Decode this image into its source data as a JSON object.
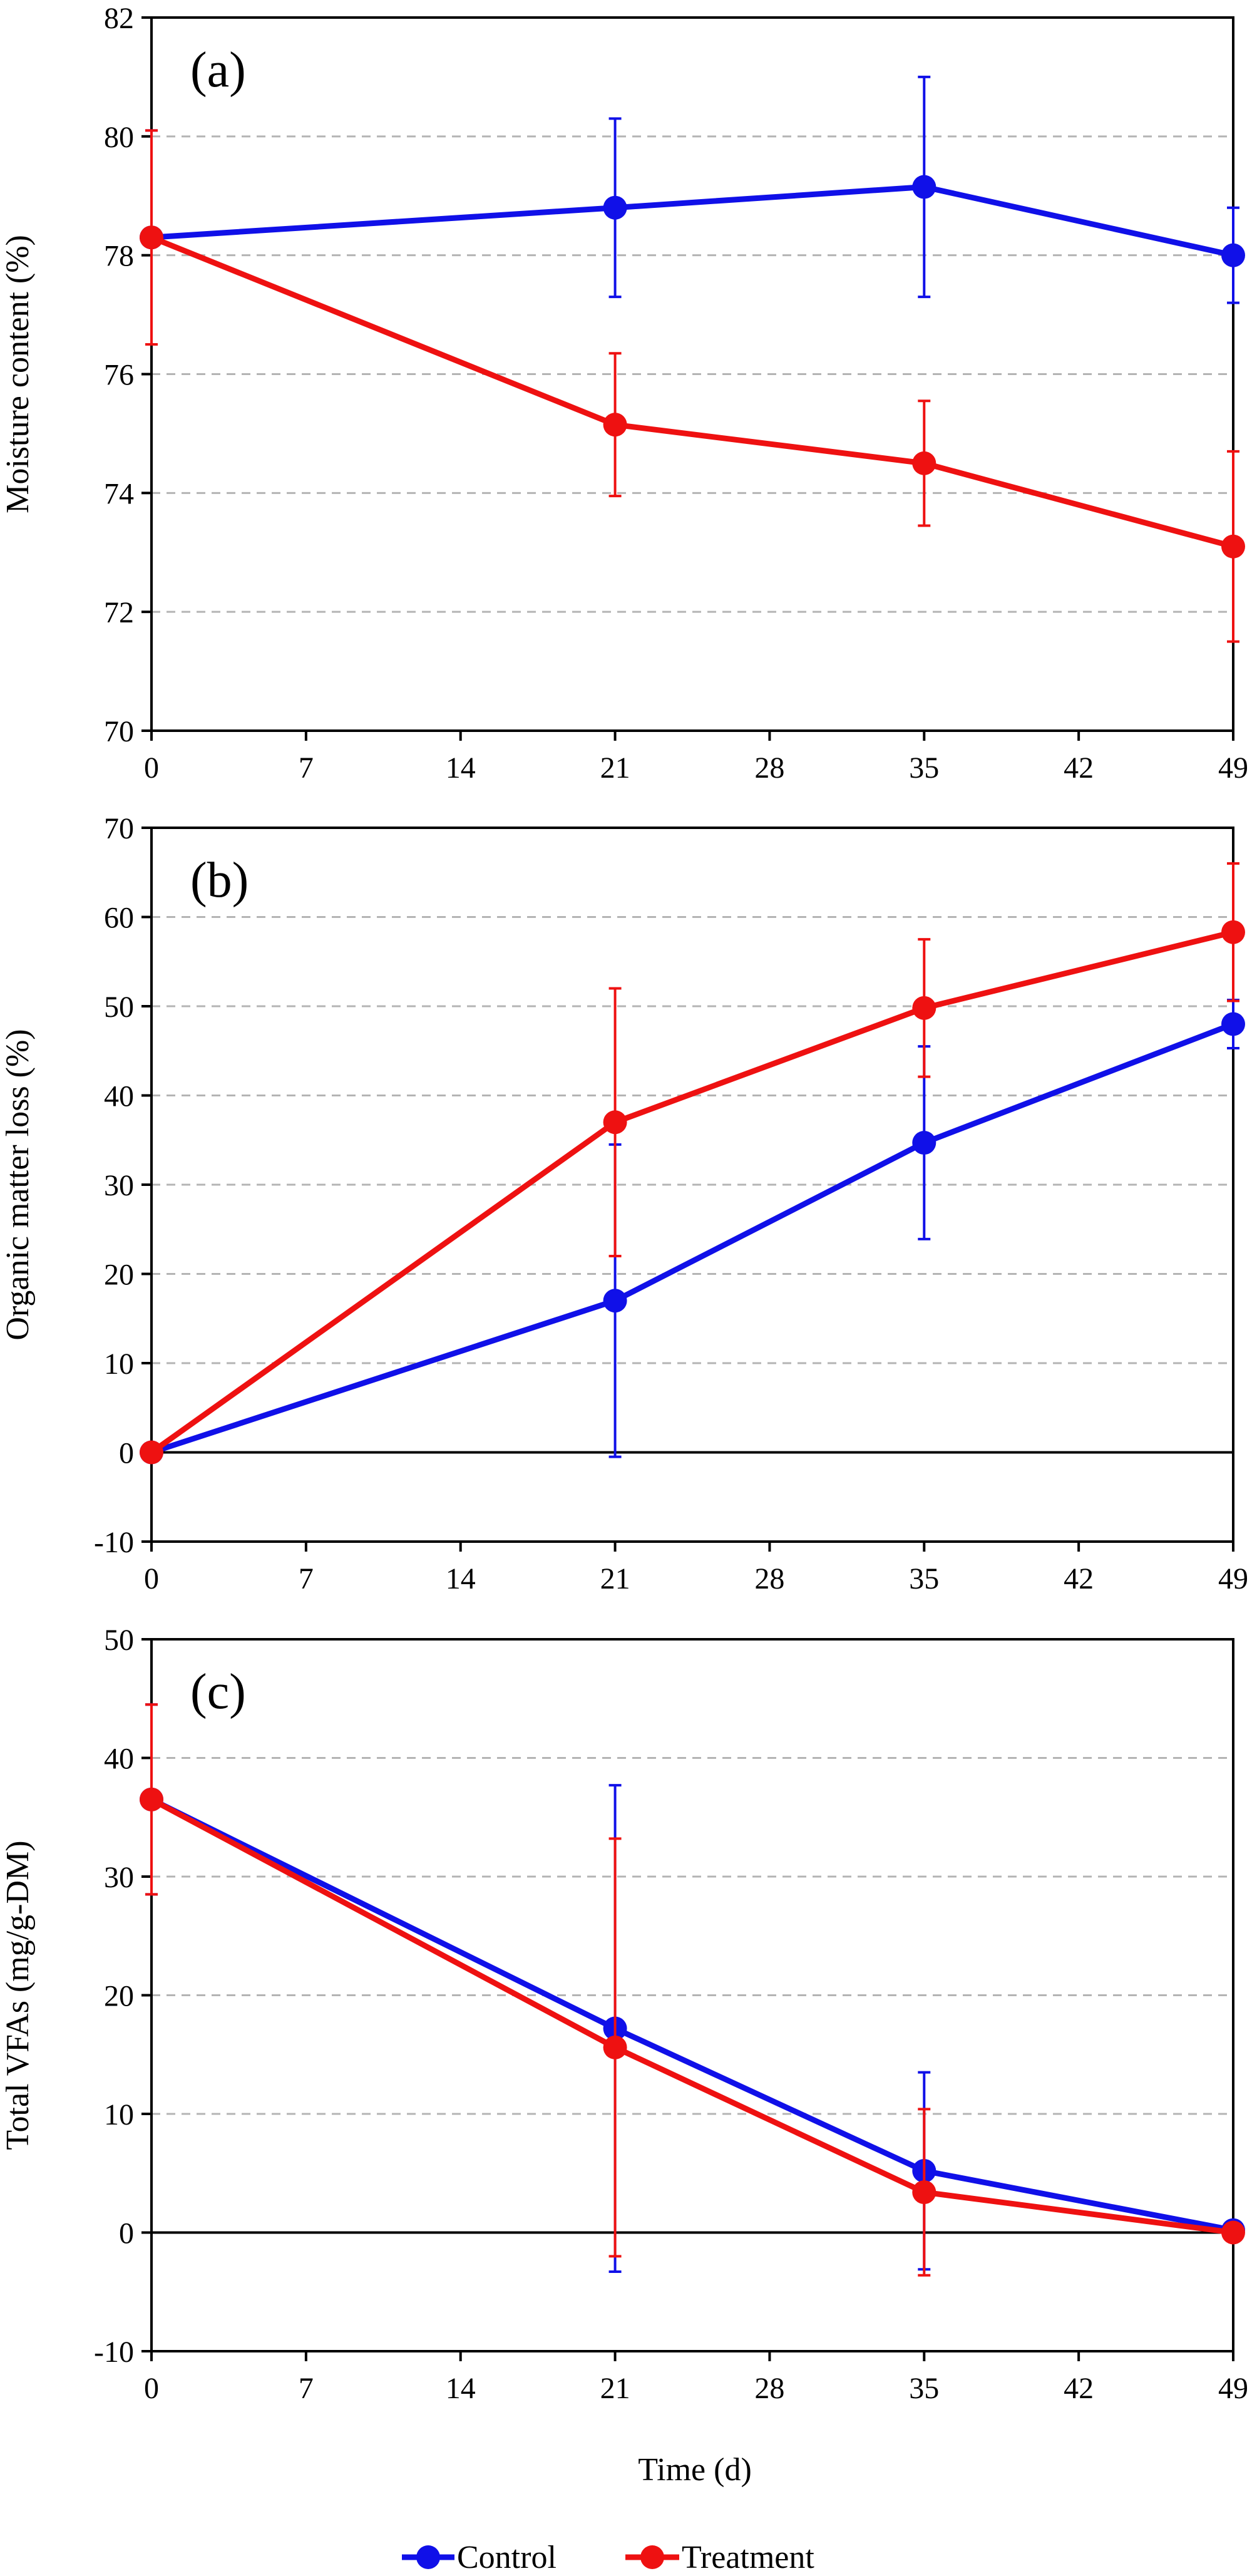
{
  "colors": {
    "control": "#1010e8",
    "treatment": "#ee1111",
    "axis": "#000000",
    "grid": "#b4b4b4"
  },
  "legend": {
    "position": "bottom-center",
    "entries": [
      "Control",
      "Treatment"
    ]
  },
  "chart_data": [
    {
      "type": "line",
      "panel_label": "(a)",
      "xlabel": "",
      "ylabel": "Moisture content  (%)",
      "xlim": [
        0,
        49
      ],
      "ylim": [
        70,
        82
      ],
      "xticks": [
        0,
        7,
        14,
        21,
        28,
        35,
        42,
        49
      ],
      "yticks": [
        70,
        72,
        74,
        76,
        78,
        80,
        82
      ],
      "grid": "horizontal dashed",
      "zero_line": false,
      "series": [
        {
          "name": "Control",
          "key": "control",
          "x": [
            0,
            21,
            35,
            49
          ],
          "y": [
            78.3,
            78.8,
            79.15,
            78.0
          ],
          "err": [
            1.8,
            1.5,
            1.85,
            0.8
          ]
        },
        {
          "name": "Treatment",
          "key": "treatment",
          "x": [
            0,
            21,
            35,
            49
          ],
          "y": [
            78.3,
            75.15,
            74.5,
            73.1
          ],
          "err": [
            1.8,
            1.2,
            1.05,
            1.6
          ]
        }
      ]
    },
    {
      "type": "line",
      "panel_label": "(b)",
      "xlabel": "",
      "ylabel": "Organic matter loss (%)",
      "xlim": [
        0,
        49
      ],
      "ylim": [
        -10,
        70
      ],
      "xticks": [
        0,
        7,
        14,
        21,
        28,
        35,
        42,
        49
      ],
      "yticks": [
        -10,
        0,
        10,
        20,
        30,
        40,
        50,
        60,
        70
      ],
      "grid": "horizontal dashed",
      "zero_line": true,
      "series": [
        {
          "name": "Control",
          "key": "control",
          "x": [
            0,
            21,
            35,
            49
          ],
          "y": [
            0,
            17,
            34.7,
            48
          ],
          "err": [
            0,
            17.5,
            10.8,
            2.7
          ]
        },
        {
          "name": "Treatment",
          "key": "treatment",
          "x": [
            0,
            21,
            35,
            49
          ],
          "y": [
            0,
            37,
            49.8,
            58.3
          ],
          "err": [
            0,
            15,
            7.7,
            7.7
          ]
        }
      ]
    },
    {
      "type": "line",
      "panel_label": "(c)",
      "xlabel": "Time (d)",
      "ylabel": "Total VFAs (mg/g-DM)",
      "xlim": [
        0,
        49
      ],
      "ylim": [
        -10,
        50
      ],
      "xticks": [
        0,
        7,
        14,
        21,
        28,
        35,
        42,
        49
      ],
      "yticks": [
        -10,
        0,
        10,
        20,
        30,
        40,
        50
      ],
      "grid": "horizontal dashed",
      "zero_line": true,
      "series": [
        {
          "name": "Control",
          "key": "control",
          "x": [
            0,
            21,
            35,
            49
          ],
          "y": [
            36.5,
            17.2,
            5.2,
            0.2
          ],
          "err": [
            8.0,
            20.5,
            8.3,
            0.3
          ]
        },
        {
          "name": "Treatment",
          "key": "treatment",
          "x": [
            0,
            21,
            35,
            49
          ],
          "y": [
            36.5,
            15.6,
            3.4,
            0.0
          ],
          "err": [
            8.0,
            17.6,
            7.0,
            0.3
          ]
        }
      ]
    }
  ]
}
